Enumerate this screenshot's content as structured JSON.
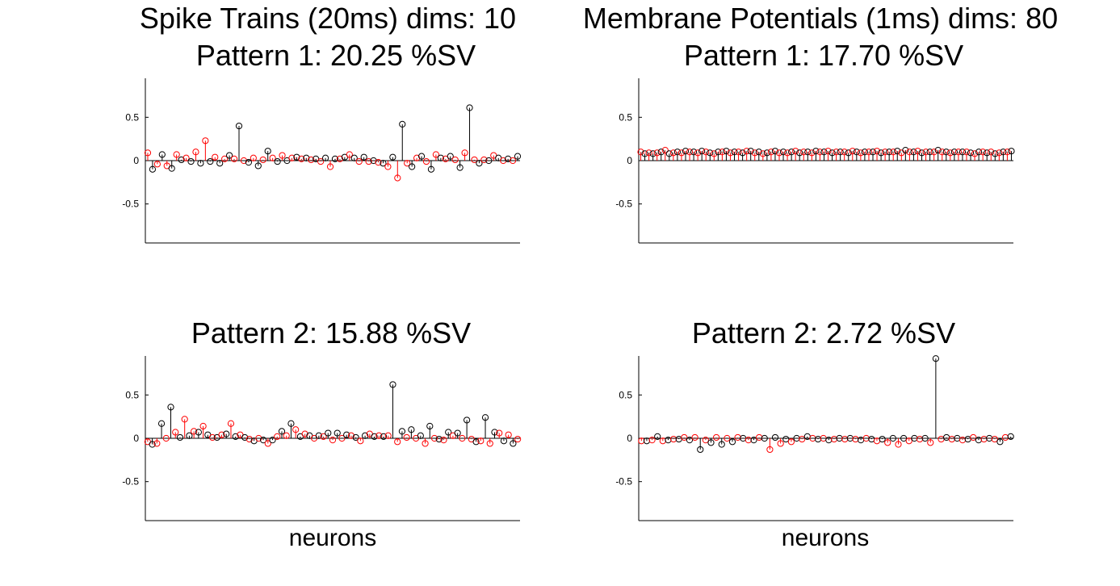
{
  "figure": {
    "left_title_line1": "Spike Trains (20ms) dims: 10",
    "left_title_line2": "Pattern 1: 20.25 %SV",
    "right_title_line1": "Membrane Potentials (1ms) dims: 80",
    "right_title_line2": "Pattern 1: 17.70 %SV",
    "left_bottom_title": "Pattern 2: 15.88 %SV",
    "right_bottom_title": "Pattern 2: 2.72 %SV",
    "xlabel": "neurons"
  },
  "chart_data": [
    {
      "type": "stem",
      "title": "Spike Trains (20ms) dims: 10 / Pattern 1: 20.25 %SV",
      "xlabel": "",
      "ylabel": "",
      "ylim": [
        -0.95,
        0.95
      ],
      "yticks": [
        0.5,
        0,
        -0.5
      ],
      "ytick_labels": [
        "0.5",
        "0",
        "-0.5"
      ],
      "series_colors": [
        "#ff0000",
        "#000000"
      ],
      "values": [
        0.09,
        -0.1,
        -0.04,
        0.07,
        -0.06,
        -0.09,
        0.07,
        0.01,
        0.03,
        -0.01,
        0.1,
        -0.03,
        0.23,
        -0.01,
        0.04,
        -0.03,
        0.02,
        0.06,
        0.02,
        0.4,
        0.0,
        -0.02,
        0.03,
        -0.06,
        0.01,
        0.11,
        0.03,
        -0.01,
        0.06,
        0.0,
        0.03,
        0.04,
        0.02,
        0.03,
        0.01,
        0.02,
        -0.01,
        0.03,
        -0.07,
        0.02,
        0.02,
        0.04,
        0.07,
        0.03,
        -0.01,
        0.04,
        -0.01,
        0.0,
        -0.02,
        -0.03,
        -0.07,
        0.04,
        -0.2,
        0.42,
        -0.03,
        -0.07,
        0.03,
        0.05,
        -0.01,
        -0.1,
        0.07,
        0.03,
        0.02,
        0.05,
        0.01,
        -0.08,
        0.09,
        0.61,
        0.01,
        -0.03,
        0.01,
        0.0,
        0.06,
        0.03,
        0.0,
        0.02,
        0.0,
        0.05
      ]
    },
    {
      "type": "stem",
      "title": "Membrane Potentials (1ms) dims: 80 / Pattern 1: 17.70 %SV",
      "xlabel": "",
      "ylabel": "",
      "ylim": [
        -0.95,
        0.95
      ],
      "yticks": [
        0.5,
        0,
        -0.5
      ],
      "ytick_labels": [
        "0.5",
        "0",
        "-0.5"
      ],
      "series_colors": [
        "#ff0000",
        "#000000"
      ],
      "values": [
        0.1,
        0.08,
        0.09,
        0.08,
        0.09,
        0.1,
        0.12,
        0.08,
        0.09,
        0.1,
        0.09,
        0.11,
        0.1,
        0.1,
        0.09,
        0.11,
        0.1,
        0.09,
        0.08,
        0.1,
        0.1,
        0.11,
        0.09,
        0.1,
        0.1,
        0.09,
        0.11,
        0.11,
        0.09,
        0.1,
        0.08,
        0.09,
        0.1,
        0.11,
        0.09,
        0.1,
        0.09,
        0.1,
        0.11,
        0.09,
        0.1,
        0.1,
        0.09,
        0.11,
        0.1,
        0.1,
        0.11,
        0.09,
        0.1,
        0.1,
        0.1,
        0.09,
        0.11,
        0.1,
        0.09,
        0.1,
        0.1,
        0.1,
        0.11,
        0.09,
        0.1,
        0.1,
        0.1,
        0.11,
        0.09,
        0.12,
        0.1,
        0.1,
        0.11,
        0.09,
        0.1,
        0.1,
        0.1,
        0.12,
        0.1,
        0.1,
        0.09,
        0.1,
        0.1,
        0.1,
        0.1,
        0.09,
        0.08,
        0.1,
        0.1,
        0.09,
        0.1,
        0.08,
        0.09,
        0.1,
        0.1,
        0.11
      ]
    },
    {
      "type": "stem",
      "title": "Pattern 2: 15.88 %SV",
      "xlabel": "neurons",
      "ylabel": "",
      "ylim": [
        -0.95,
        0.95
      ],
      "yticks": [
        0.5,
        0,
        -0.5
      ],
      "ytick_labels": [
        "0.5",
        "0",
        "-0.5"
      ],
      "series_colors": [
        "#ff0000",
        "#000000"
      ],
      "values": [
        -0.04,
        -0.07,
        -0.06,
        0.17,
        0.0,
        0.36,
        0.07,
        0.01,
        0.22,
        0.03,
        0.08,
        0.07,
        0.14,
        0.04,
        0.01,
        0.01,
        0.04,
        0.05,
        0.17,
        0.02,
        0.04,
        0.01,
        -0.01,
        -0.03,
        0.0,
        -0.02,
        -0.06,
        -0.02,
        0.02,
        0.08,
        0.03,
        0.17,
        0.1,
        0.02,
        0.05,
        0.03,
        0.0,
        0.03,
        0.02,
        0.06,
        -0.02,
        0.06,
        0.0,
        0.04,
        0.03,
        0.01,
        -0.03,
        0.03,
        0.05,
        0.02,
        0.03,
        0.02,
        0.03,
        0.62,
        -0.04,
        0.08,
        0.01,
        0.1,
        0.0,
        0.03,
        -0.06,
        0.14,
        0.0,
        -0.01,
        -0.02,
        0.07,
        0.03,
        0.06,
        0.0,
        0.21,
        -0.01,
        -0.04,
        -0.03,
        0.24,
        -0.06,
        0.07,
        0.06,
        -0.03,
        0.04,
        -0.06,
        -0.01
      ]
    },
    {
      "type": "stem",
      "title": "Pattern 2: 2.72 %SV",
      "xlabel": "neurons",
      "ylabel": "",
      "ylim": [
        -0.95,
        0.95
      ],
      "yticks": [
        0.5,
        0,
        -0.5
      ],
      "ytick_labels": [
        "0.5",
        "0",
        "-0.5"
      ],
      "series_colors": [
        "#ff0000",
        "#000000"
      ],
      "values": [
        -0.03,
        -0.03,
        -0.02,
        0.02,
        -0.03,
        -0.02,
        -0.01,
        -0.01,
        0.01,
        -0.02,
        0.01,
        -0.13,
        -0.02,
        -0.05,
        0.01,
        -0.07,
        0.0,
        -0.04,
        0.01,
        0.0,
        -0.02,
        -0.02,
        0.01,
        0.0,
        -0.13,
        0.01,
        -0.06,
        -0.01,
        -0.04,
        0.0,
        -0.01,
        0.02,
        0.0,
        -0.01,
        0.0,
        -0.02,
        -0.01,
        0.0,
        -0.01,
        0.0,
        -0.01,
        -0.02,
        0.0,
        -0.01,
        -0.03,
        -0.01,
        -0.05,
        0.0,
        -0.07,
        0.0,
        -0.03,
        0.0,
        -0.01,
        0.0,
        -0.05,
        0.92,
        -0.01,
        0.01,
        -0.01,
        0.0,
        -0.02,
        -0.01,
        0.01,
        -0.02,
        -0.01,
        0.0,
        -0.01,
        -0.04,
        0.01,
        0.02
      ]
    }
  ]
}
